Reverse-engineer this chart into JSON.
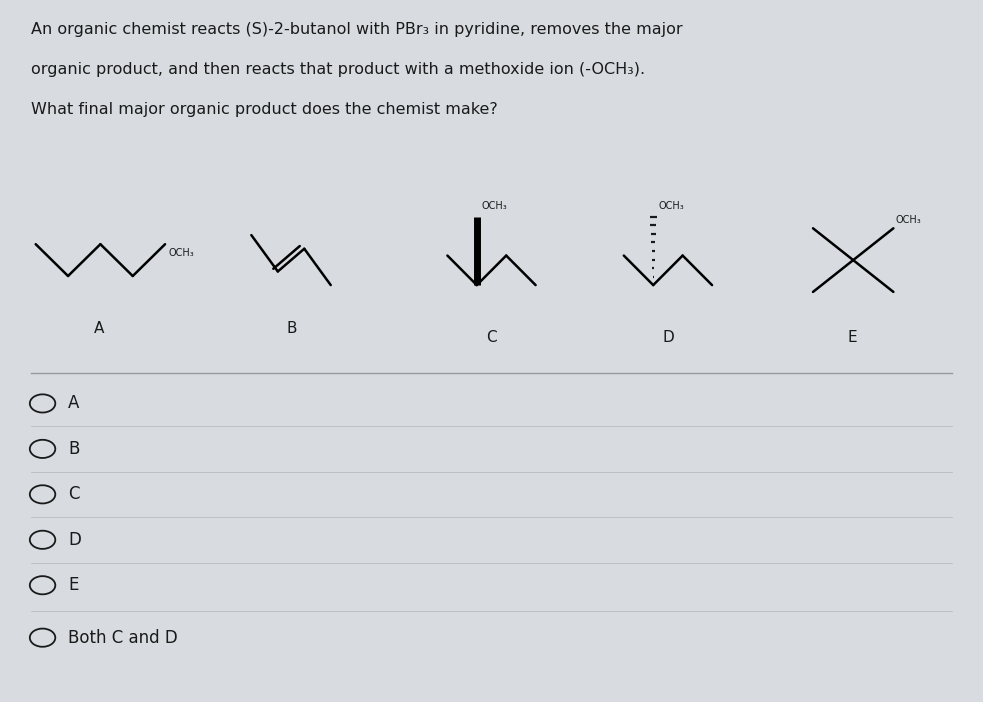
{
  "title_lines": [
    "An organic chemist reacts (S)-2-butanol with PBr₃ in pyridine, removes the major",
    "organic product, and then reacts that product with a methoxide ion (-OCH₃).",
    "What final major organic product does the chemist make?"
  ],
  "bg_color": "#d8dce0",
  "text_color": "#1a1a1a",
  "options": [
    "A",
    "B",
    "C",
    "D",
    "E",
    "Both C and D"
  ],
  "molecule_labels": [
    "A",
    "B",
    "C",
    "D",
    "E"
  ]
}
